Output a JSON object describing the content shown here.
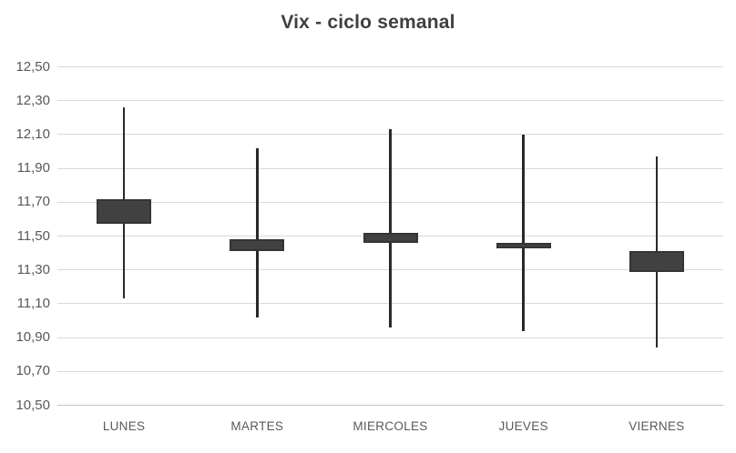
{
  "chart_data": {
    "type": "candlestick",
    "title": "Vix - ciclo semanal",
    "categories": [
      "LUNES",
      "MARTES",
      "MIERCOLES",
      "JUEVES",
      "VIERNES"
    ],
    "points": [
      {
        "category": "LUNES",
        "high": 12.26,
        "box_top": 11.72,
        "box_bottom": 11.57,
        "low": 11.13
      },
      {
        "category": "MARTES",
        "high": 12.02,
        "box_top": 11.48,
        "box_bottom": 11.41,
        "low": 11.02
      },
      {
        "category": "MIERCOLES",
        "high": 12.13,
        "box_top": 11.52,
        "box_bottom": 11.46,
        "low": 10.96
      },
      {
        "category": "JUEVES",
        "high": 12.1,
        "box_top": 11.46,
        "box_bottom": 11.43,
        "low": 10.94
      },
      {
        "category": "VIERNES",
        "high": 11.97,
        "box_top": 11.41,
        "box_bottom": 11.29,
        "low": 10.84
      }
    ],
    "ylim": [
      10.5,
      12.5
    ],
    "y_tick_step": 0.2,
    "y_tick_labels": [
      "12,50",
      "12,30",
      "12,10",
      "11,90",
      "11,70",
      "11,50",
      "11,30",
      "11,10",
      "10,90",
      "10,70",
      "10,50"
    ],
    "xlabel": "",
    "ylabel": "",
    "grid": true,
    "legend": "none",
    "decimal_separator": ",",
    "colors": {
      "box_fill": "#414141",
      "box_border": "#343434",
      "whisker": "#292929",
      "gridline": "#d9d9d9",
      "axis_line": "#c3c3c3",
      "tick_label": "#595959",
      "title": "#404040",
      "background": "#ffffff"
    }
  }
}
